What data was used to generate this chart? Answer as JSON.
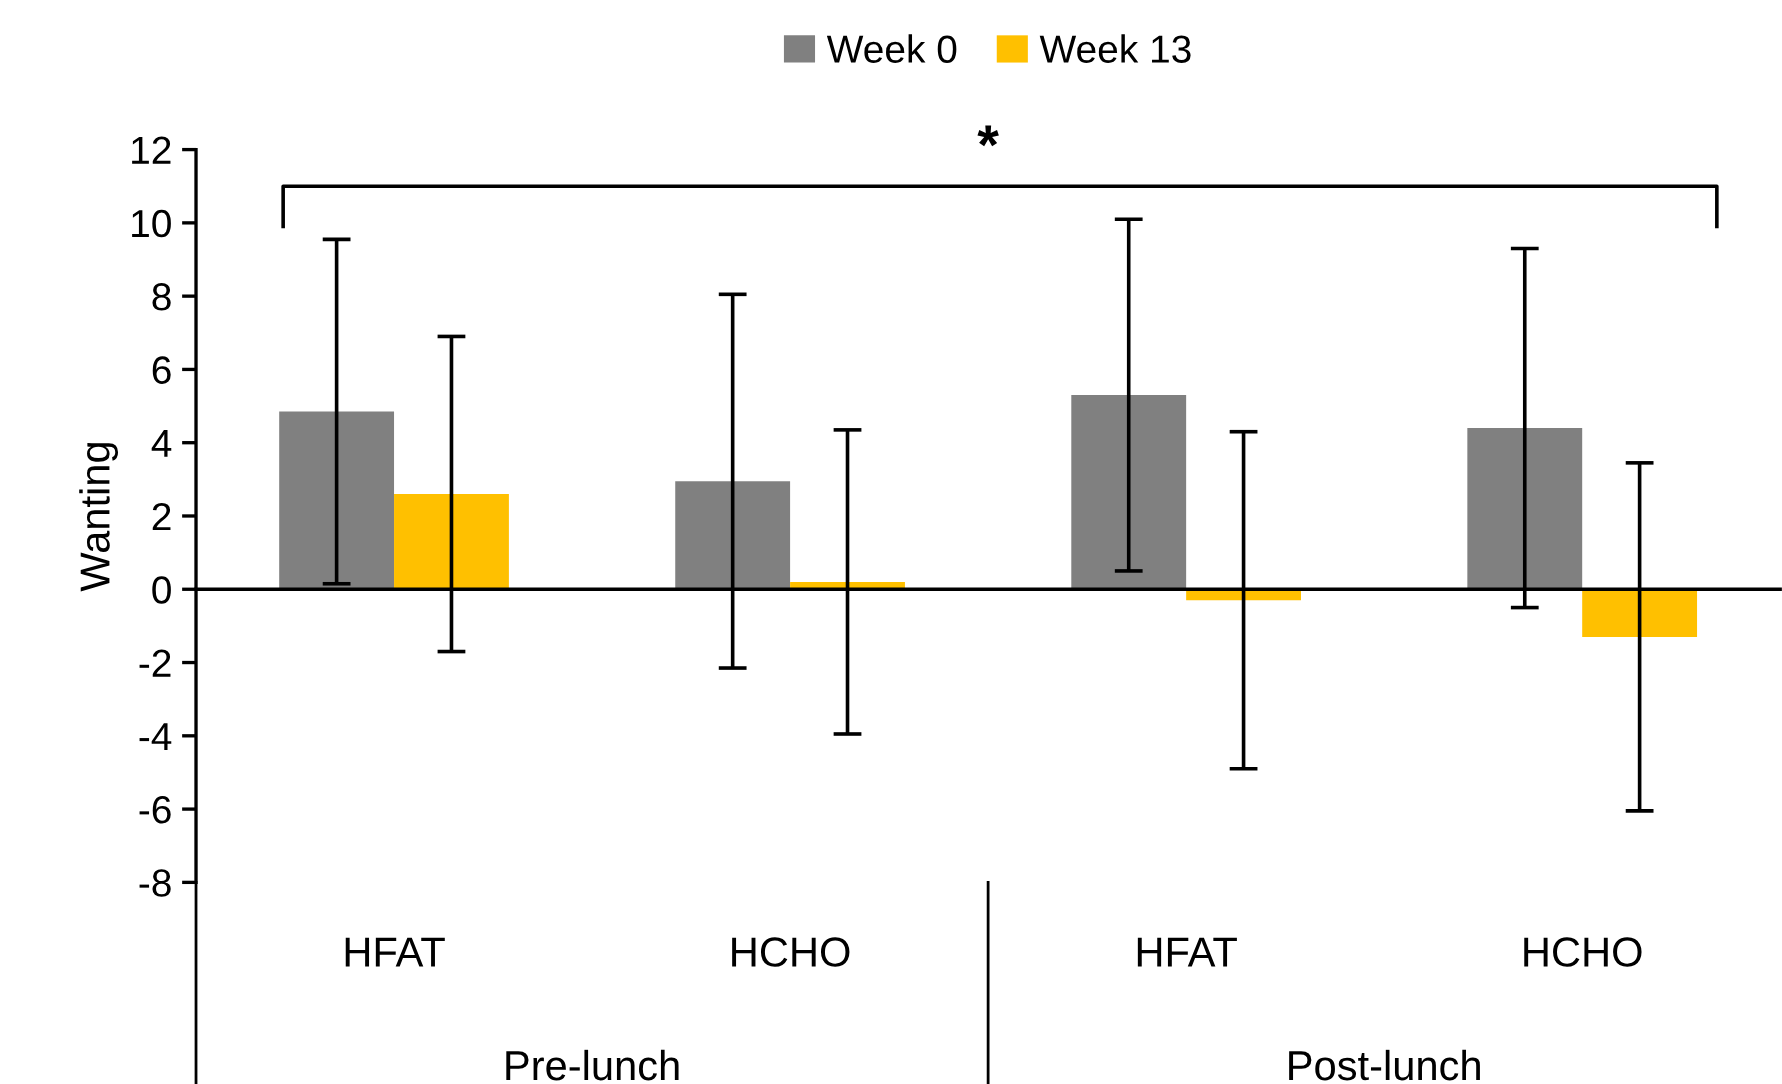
{
  "chart_data": {
    "type": "bar",
    "ylabel": "Wanting",
    "categories": [
      "HFAT",
      "HCHO",
      "HFAT",
      "HCHO"
    ],
    "series": [
      {
        "name": "Week 0",
        "color": "#808080",
        "values": [
          4.85,
          2.95,
          5.3,
          4.4
        ],
        "errors": [
          4.7,
          5.1,
          4.8,
          4.9
        ]
      },
      {
        "name": "Week 13",
        "color": "#ffc000",
        "values": [
          2.6,
          0.2,
          -0.3,
          -1.3
        ],
        "errors": [
          4.3,
          4.15,
          4.6,
          4.75
        ]
      }
    ],
    "ylim": [
      -8,
      12
    ],
    "yticks": [
      -8,
      -6,
      -4,
      -2,
      0,
      2,
      4,
      6,
      8,
      10,
      12
    ],
    "legend": "top",
    "annotations": [
      "*",
      "Pre-lunch",
      "Post-lunch"
    ]
  }
}
